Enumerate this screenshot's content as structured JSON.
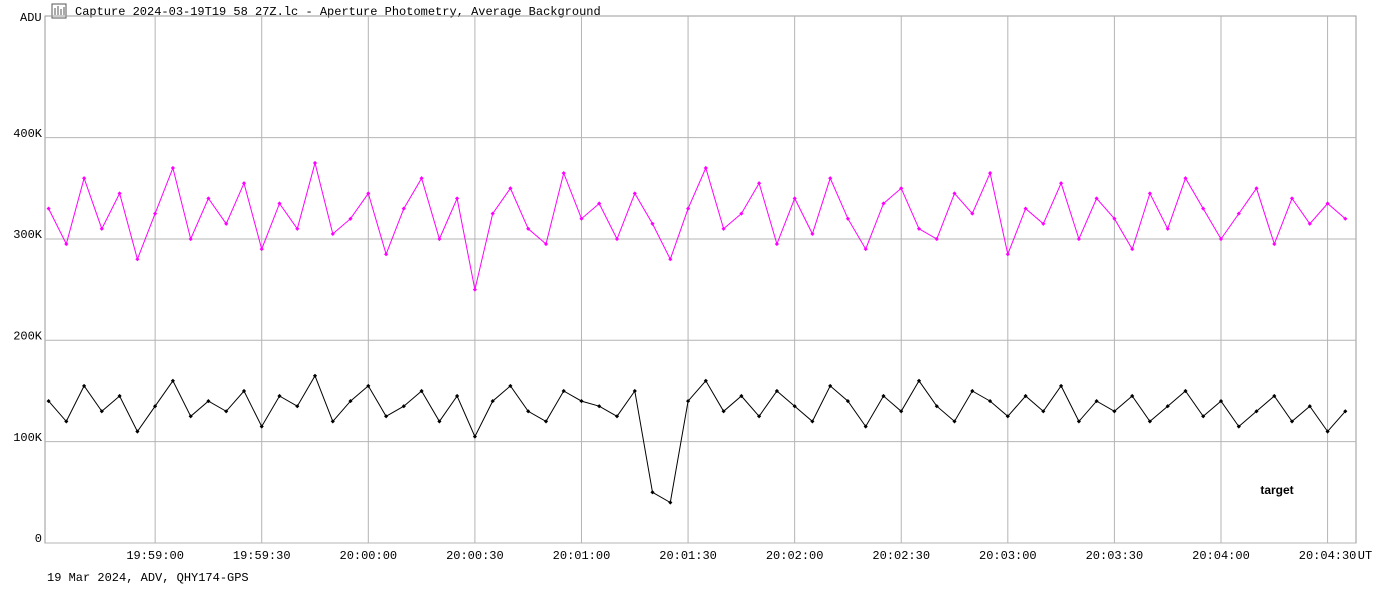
{
  "chart_data": {
    "type": "line",
    "title": "Capture 2024-03-19T19_58_27Z.lc - Aperture Photometry, Average Background",
    "ylabel": "ADU",
    "xlabel": "UT",
    "footer": "19 Mar 2024, ADV, QHY174-GPS",
    "xlim": [
      "19:58:29",
      "20:04:38"
    ],
    "xticks": [
      "19:59:00",
      "19:59:30",
      "20:00:00",
      "20:00:30",
      "20:01:00",
      "20:01:30",
      "20:02:00",
      "20:02:30",
      "20:03:00",
      "20:03:30",
      "20:04:00",
      "20:04:30"
    ],
    "ylim": [
      0,
      520000
    ],
    "yticks": [
      0,
      {
        "value": 100000,
        "label": "100K"
      },
      {
        "value": 200000,
        "label": "200K"
      },
      {
        "value": 300000,
        "label": "300K"
      },
      {
        "value": 400000,
        "label": "400K"
      }
    ],
    "grid": true,
    "x": [
      "19:58:30",
      "19:58:35",
      "19:58:40",
      "19:58:45",
      "19:58:50",
      "19:58:55",
      "19:59:00",
      "19:59:05",
      "19:59:10",
      "19:59:15",
      "19:59:20",
      "19:59:25",
      "19:59:30",
      "19:59:35",
      "19:59:40",
      "19:59:45",
      "19:59:50",
      "19:59:55",
      "20:00:00",
      "20:00:05",
      "20:00:10",
      "20:00:15",
      "20:00:20",
      "20:00:25",
      "20:00:30",
      "20:00:35",
      "20:00:40",
      "20:00:45",
      "20:00:50",
      "20:00:55",
      "20:01:00",
      "20:01:05",
      "20:01:10",
      "20:01:15",
      "20:01:20",
      "20:01:25",
      "20:01:30",
      "20:01:35",
      "20:01:40",
      "20:01:45",
      "20:01:50",
      "20:01:55",
      "20:02:00",
      "20:02:05",
      "20:02:10",
      "20:02:15",
      "20:02:20",
      "20:02:25",
      "20:02:30",
      "20:02:35",
      "20:02:40",
      "20:02:45",
      "20:02:50",
      "20:02:55",
      "20:03:00",
      "20:03:05",
      "20:03:10",
      "20:03:15",
      "20:03:20",
      "20:03:25",
      "20:03:30",
      "20:03:35",
      "20:03:40",
      "20:03:45",
      "20:03:50",
      "20:03:55",
      "20:04:00",
      "20:04:05",
      "20:04:10",
      "20:04:15",
      "20:04:20",
      "20:04:25",
      "20:04:30",
      "20:04:35"
    ],
    "series": [
      {
        "color": "#ff00ff",
        "values": [
          330000,
          295000,
          360000,
          310000,
          345000,
          280000,
          325000,
          370000,
          300000,
          340000,
          315000,
          355000,
          290000,
          335000,
          310000,
          375000,
          305000,
          320000,
          345000,
          285000,
          330000,
          360000,
          300000,
          340000,
          250000,
          325000,
          350000,
          310000,
          295000,
          365000,
          320000,
          335000,
          300000,
          345000,
          315000,
          280000,
          330000,
          370000,
          310000,
          325000,
          355000,
          295000,
          340000,
          305000,
          360000,
          320000,
          290000,
          335000,
          350000,
          310000,
          300000,
          345000,
          325000,
          365000,
          285000,
          330000,
          315000,
          355000,
          300000,
          340000,
          320000,
          290000,
          345000,
          310000,
          360000,
          330000,
          300000,
          325000,
          350000,
          295000,
          340000,
          315000,
          335000,
          320000
        ]
      },
      {
        "name": "target",
        "color": "#000000",
        "values": [
          140000,
          120000,
          155000,
          130000,
          145000,
          110000,
          135000,
          160000,
          125000,
          140000,
          130000,
          150000,
          115000,
          145000,
          135000,
          165000,
          120000,
          140000,
          155000,
          125000,
          135000,
          150000,
          120000,
          145000,
          105000,
          140000,
          155000,
          130000,
          120000,
          150000,
          140000,
          135000,
          125000,
          150000,
          50000,
          40000,
          140000,
          160000,
          130000,
          145000,
          125000,
          150000,
          135000,
          120000,
          155000,
          140000,
          115000,
          145000,
          130000,
          160000,
          135000,
          120000,
          150000,
          140000,
          125000,
          145000,
          130000,
          155000,
          120000,
          140000,
          130000,
          145000,
          120000,
          135000,
          150000,
          125000,
          140000,
          115000,
          130000,
          145000,
          120000,
          135000,
          110000,
          130000
        ]
      }
    ]
  }
}
